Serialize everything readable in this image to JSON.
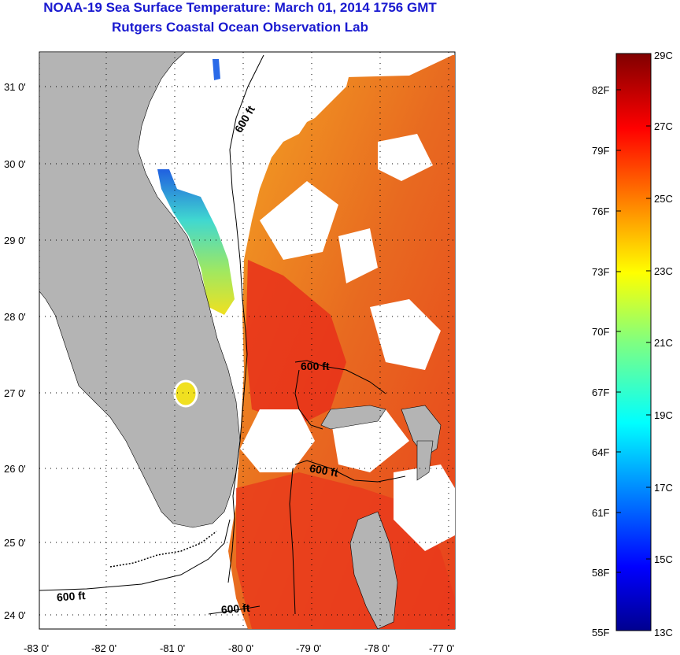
{
  "header": {
    "title": "NOAA-19 Sea Surface Temperature:  March 01, 2014 1756 GMT",
    "subtitle": "Rutgers Coastal Ocean Observation Lab"
  },
  "map": {
    "lat_labels": [
      "31 0'",
      "30 0'",
      "29 0'",
      "28 0'",
      "27 0'",
      "26 0'",
      "25 0'",
      "24 0'"
    ],
    "lon_labels": [
      "-83 0'",
      "-82 0'",
      "-81 0'",
      "-80 0'",
      "-79 0'",
      "-78 0'",
      "-77 0'"
    ],
    "contour_labels": [
      "600 ft",
      "600 ft",
      "600 ft",
      "600 ft",
      "600 ft"
    ]
  },
  "colorbar": {
    "fahrenheit_labels": [
      "82F",
      "79F",
      "76F",
      "73F",
      "70F",
      "67F",
      "64F",
      "61F",
      "58F",
      "55F"
    ],
    "celsius_labels": [
      "29C",
      "27C",
      "25C",
      "23C",
      "21C",
      "19C",
      "17C",
      "15C",
      "13C"
    ],
    "range_c": [
      13,
      29
    ],
    "range_f": [
      55,
      84
    ]
  },
  "colors": {
    "title": "#1a1ad0",
    "land": "#b4b4b4",
    "cloud": "#ffffff",
    "warm_sst": "#e8381c",
    "coastal_cool": "#40d8d0"
  }
}
